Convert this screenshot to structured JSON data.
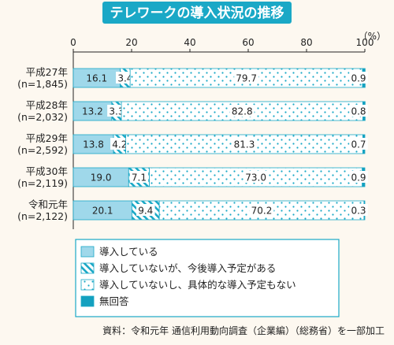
{
  "title": "テレワークの導入状況の推移",
  "unit": "（%）",
  "source": "資料：令和元年 通信利用動向調査（企業編）（総務省）を一部加工",
  "colors": {
    "title_bg": "#1aa8c6",
    "solid": "#9fd8ea",
    "accent": "#14a0bf",
    "border": "#1aa8c6",
    "dotted_bg": "#ffffff"
  },
  "chart_data": {
    "type": "bar",
    "orientation": "horizontal",
    "stacked": true,
    "xlim": [
      0,
      100
    ],
    "xticks": [
      "0",
      "20",
      "40",
      "60",
      "80",
      "100"
    ],
    "categories": [
      [
        "平成27年",
        "(n=1,845)"
      ],
      [
        "平成28年",
        "(n=2,032)"
      ],
      [
        "平成29年",
        "(n=2,592)"
      ],
      [
        "平成30年",
        "(n=2,119)"
      ],
      [
        "令和元年",
        "(n=2,122)"
      ]
    ],
    "series": [
      {
        "name": "導入している",
        "pattern": "solid",
        "values": [
          16.1,
          13.2,
          13.8,
          19.0,
          20.1
        ],
        "labels": [
          "16.1",
          "13.2",
          "13.8",
          "19.0",
          "20.1"
        ]
      },
      {
        "name": "導入していないが、今後導入予定がある",
        "pattern": "hatch",
        "values": [
          3.4,
          3.3,
          4.2,
          7.1,
          9.4
        ],
        "labels": [
          "3.4",
          "3.3",
          "4.2",
          "7.1",
          "9.4"
        ]
      },
      {
        "name": "導入していないし、具体的な導入予定もない",
        "pattern": "dots",
        "values": [
          79.7,
          82.8,
          81.3,
          73.0,
          70.2
        ],
        "labels": [
          "79.7",
          "82.8",
          "81.3",
          "73.0",
          "70.2"
        ]
      },
      {
        "name": "無回答",
        "pattern": "dark",
        "values": [
          0.9,
          0.8,
          0.7,
          0.9,
          0.3
        ],
        "labels": [
          "0.9",
          "0.8",
          "0.7",
          "0.9",
          "0.3"
        ]
      }
    ],
    "legend_position": "bottom"
  }
}
